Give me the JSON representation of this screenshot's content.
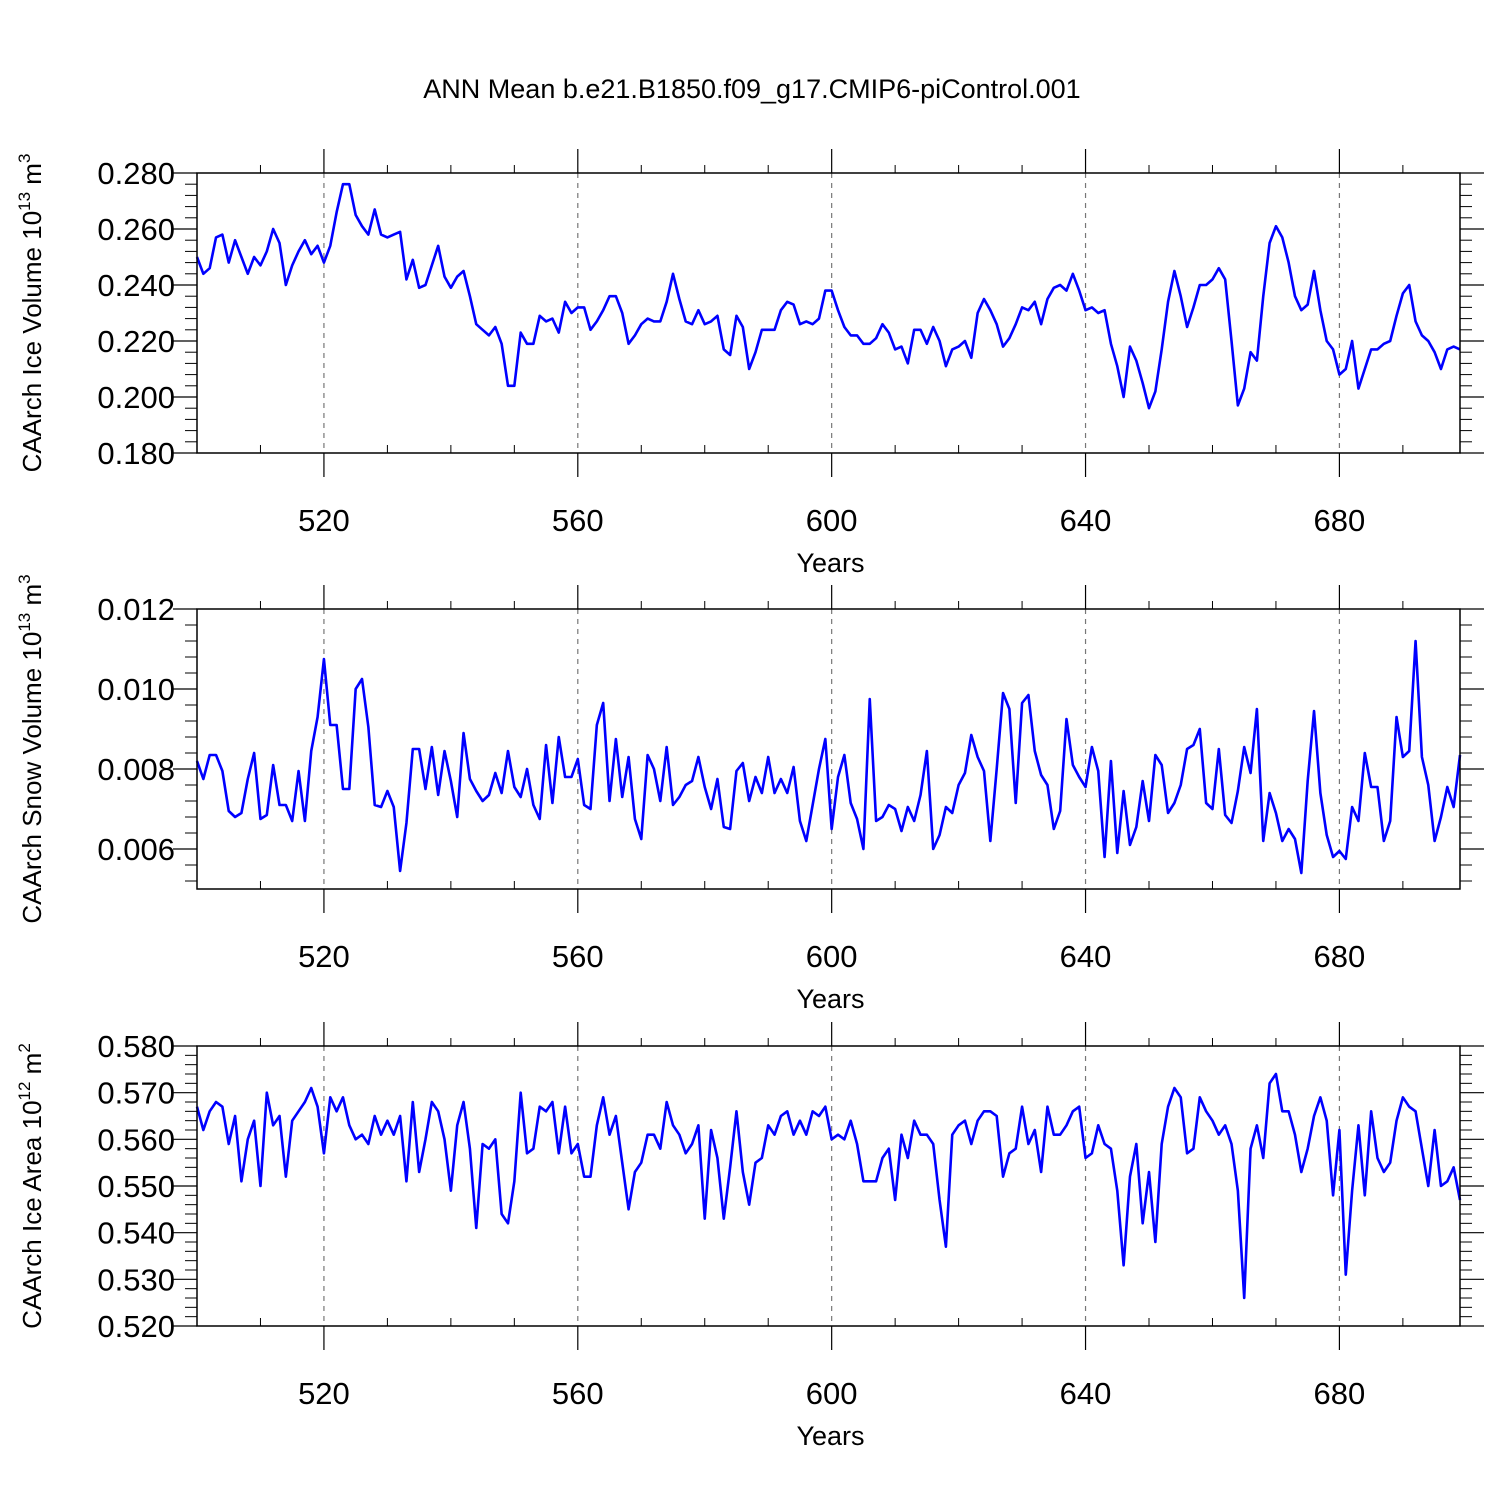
{
  "title": "ANN Mean b.e21.B1850.f09_g17.CMIP6-piControl.001",
  "colors": {
    "line": "#0000ff",
    "axis": "#000000",
    "grid": "#777777",
    "background": "#ffffff"
  },
  "chart_data": [
    {
      "type": "line",
      "ylabel": "CAArch Ice Volume 10",
      "ylabel_exp": "13",
      "ylabel_unit": " m",
      "ylabel_unit_exp": "3",
      "xlabel": "Years",
      "xlim": [
        500,
        699
      ],
      "ylim": [
        0.18,
        0.28
      ],
      "xticks": [
        520,
        560,
        600,
        640,
        680
      ],
      "xtick_labels": [
        "520",
        "560",
        "600",
        "640",
        "680"
      ],
      "yticks": [
        0.18,
        0.2,
        0.22,
        0.24,
        0.26,
        0.28
      ],
      "ytick_labels": [
        "0.180",
        "0.200",
        "0.220",
        "0.240",
        "0.260",
        "0.280"
      ],
      "grid": "vertical dashed at major x ticks",
      "x_start": 500,
      "x_step": 1,
      "values": [
        0.25,
        0.244,
        0.246,
        0.257,
        0.258,
        0.248,
        0.256,
        0.25,
        0.244,
        0.25,
        0.247,
        0.252,
        0.26,
        0.255,
        0.24,
        0.247,
        0.252,
        0.256,
        0.251,
        0.254,
        0.248,
        0.254,
        0.266,
        0.276,
        0.276,
        0.265,
        0.261,
        0.258,
        0.267,
        0.258,
        0.257,
        0.258,
        0.259,
        0.242,
        0.249,
        0.239,
        0.24,
        0.247,
        0.254,
        0.243,
        0.239,
        0.243,
        0.245,
        0.236,
        0.226,
        0.224,
        0.222,
        0.225,
        0.219,
        0.204,
        0.204,
        0.223,
        0.219,
        0.219,
        0.229,
        0.227,
        0.228,
        0.223,
        0.234,
        0.23,
        0.232,
        0.232,
        0.224,
        0.227,
        0.231,
        0.236,
        0.236,
        0.23,
        0.219,
        0.222,
        0.226,
        0.228,
        0.227,
        0.227,
        0.234,
        0.244,
        0.235,
        0.227,
        0.226,
        0.231,
        0.226,
        0.227,
        0.229,
        0.217,
        0.215,
        0.229,
        0.225,
        0.21,
        0.216,
        0.224,
        0.224,
        0.224,
        0.231,
        0.234,
        0.233,
        0.226,
        0.227,
        0.226,
        0.228,
        0.238,
        0.238,
        0.231,
        0.225,
        0.222,
        0.222,
        0.219,
        0.219,
        0.221,
        0.226,
        0.223,
        0.217,
        0.218,
        0.212,
        0.224,
        0.224,
        0.219,
        0.225,
        0.22,
        0.211,
        0.217,
        0.218,
        0.22,
        0.214,
        0.23,
        0.235,
        0.231,
        0.226,
        0.218,
        0.221,
        0.226,
        0.232,
        0.231,
        0.234,
        0.226,
        0.235,
        0.239,
        0.24,
        0.238,
        0.244,
        0.238,
        0.231,
        0.232,
        0.23,
        0.231,
        0.219,
        0.211,
        0.2,
        0.218,
        0.213,
        0.205,
        0.196,
        0.202,
        0.217,
        0.234,
        0.245,
        0.236,
        0.225,
        0.232,
        0.24,
        0.24,
        0.242,
        0.246,
        0.242,
        0.22,
        0.197,
        0.203,
        0.216,
        0.213,
        0.236,
        0.255,
        0.261,
        0.257,
        0.248,
        0.236,
        0.231,
        0.233,
        0.245,
        0.231,
        0.22,
        0.217,
        0.208,
        0.21,
        0.22,
        0.203,
        0.21,
        0.217,
        0.217,
        0.219,
        0.22,
        0.229,
        0.237,
        0.24,
        0.227,
        0.222,
        0.22,
        0.216,
        0.21,
        0.217,
        0.218,
        0.217
      ]
    },
    {
      "type": "line",
      "ylabel": "CAArch Snow Volume 10",
      "ylabel_exp": "13",
      "ylabel_unit": " m",
      "ylabel_unit_exp": "3",
      "xlabel": "Years",
      "xlim": [
        500,
        699
      ],
      "ylim": [
        0.005,
        0.012
      ],
      "xticks": [
        520,
        560,
        600,
        640,
        680
      ],
      "xtick_labels": [
        "520",
        "560",
        "600",
        "640",
        "680"
      ],
      "yticks": [
        0.006,
        0.008,
        0.01,
        0.012
      ],
      "ytick_labels": [
        "0.006",
        "0.008",
        "0.010",
        "0.012"
      ],
      "grid": "vertical dashed at major x ticks",
      "x_start": 500,
      "x_step": 1,
      "values": [
        0.0082,
        0.00775,
        0.00835,
        0.00835,
        0.00795,
        0.00695,
        0.0068,
        0.0069,
        0.00775,
        0.0084,
        0.00675,
        0.00685,
        0.0081,
        0.0071,
        0.0071,
        0.0067,
        0.00795,
        0.0067,
        0.00845,
        0.0093,
        0.01075,
        0.0091,
        0.0091,
        0.0075,
        0.0075,
        0.01,
        0.01025,
        0.00905,
        0.0071,
        0.00705,
        0.00745,
        0.00705,
        0.00545,
        0.00665,
        0.0085,
        0.0085,
        0.0075,
        0.00855,
        0.00735,
        0.00845,
        0.0077,
        0.0068,
        0.0089,
        0.00775,
        0.00745,
        0.0072,
        0.00735,
        0.0079,
        0.0074,
        0.00845,
        0.00755,
        0.0073,
        0.008,
        0.0071,
        0.00675,
        0.0086,
        0.00715,
        0.0088,
        0.0078,
        0.0078,
        0.00825,
        0.0071,
        0.007,
        0.0091,
        0.00965,
        0.0072,
        0.00875,
        0.0073,
        0.0083,
        0.00675,
        0.00625,
        0.00835,
        0.008,
        0.0072,
        0.00855,
        0.0071,
        0.0073,
        0.0076,
        0.0077,
        0.0083,
        0.00755,
        0.007,
        0.00775,
        0.00655,
        0.0065,
        0.00795,
        0.00815,
        0.0072,
        0.0078,
        0.0074,
        0.0083,
        0.0074,
        0.00775,
        0.0074,
        0.00805,
        0.0067,
        0.0062,
        0.0071,
        0.008,
        0.00875,
        0.0065,
        0.0078,
        0.00835,
        0.00715,
        0.00675,
        0.006,
        0.00975,
        0.0067,
        0.0068,
        0.0071,
        0.007,
        0.00645,
        0.00705,
        0.0067,
        0.00735,
        0.00845,
        0.006,
        0.00635,
        0.00705,
        0.0069,
        0.0076,
        0.0079,
        0.00885,
        0.0083,
        0.00795,
        0.0062,
        0.008,
        0.0099,
        0.0095,
        0.00715,
        0.00965,
        0.00985,
        0.00845,
        0.00785,
        0.0076,
        0.0065,
        0.00695,
        0.00925,
        0.0081,
        0.0078,
        0.00755,
        0.00855,
        0.00795,
        0.0058,
        0.0082,
        0.0059,
        0.00745,
        0.0061,
        0.00655,
        0.0077,
        0.0067,
        0.00835,
        0.0081,
        0.0069,
        0.00715,
        0.0076,
        0.0085,
        0.0086,
        0.009,
        0.00715,
        0.007,
        0.0085,
        0.00685,
        0.00665,
        0.00745,
        0.00855,
        0.0079,
        0.0095,
        0.0062,
        0.0074,
        0.0069,
        0.0062,
        0.0065,
        0.00625,
        0.0054,
        0.0077,
        0.00945,
        0.0074,
        0.00635,
        0.0058,
        0.00595,
        0.00575,
        0.00705,
        0.0067,
        0.0084,
        0.00755,
        0.00755,
        0.0062,
        0.0067,
        0.0093,
        0.0083,
        0.00845,
        0.0112,
        0.0083,
        0.0076,
        0.0062,
        0.0068,
        0.00755,
        0.00705,
        0.00835
      ]
    },
    {
      "type": "line",
      "ylabel": "CAArch Ice Area 10",
      "ylabel_exp": "12",
      "ylabel_unit": " m",
      "ylabel_unit_exp": "2",
      "xlabel": "Years",
      "xlim": [
        500,
        699
      ],
      "ylim": [
        0.52,
        0.58
      ],
      "xticks": [
        520,
        560,
        600,
        640,
        680
      ],
      "xtick_labels": [
        "520",
        "560",
        "600",
        "640",
        "680"
      ],
      "yticks": [
        0.52,
        0.53,
        0.54,
        0.55,
        0.56,
        0.57,
        0.58
      ],
      "ytick_labels": [
        "0.520",
        "0.530",
        "0.540",
        "0.550",
        "0.560",
        "0.570",
        "0.580"
      ],
      "grid": "vertical dashed at major x ticks",
      "x_start": 500,
      "x_step": 1,
      "values": [
        0.567,
        0.562,
        0.566,
        0.568,
        0.567,
        0.559,
        0.565,
        0.551,
        0.56,
        0.564,
        0.55,
        0.57,
        0.563,
        0.565,
        0.552,
        0.564,
        0.566,
        0.568,
        0.571,
        0.567,
        0.557,
        0.569,
        0.566,
        0.569,
        0.563,
        0.56,
        0.561,
        0.559,
        0.565,
        0.561,
        0.564,
        0.561,
        0.565,
        0.551,
        0.568,
        0.553,
        0.56,
        0.568,
        0.566,
        0.56,
        0.549,
        0.563,
        0.568,
        0.558,
        0.541,
        0.559,
        0.558,
        0.56,
        0.544,
        0.542,
        0.551,
        0.57,
        0.557,
        0.558,
        0.567,
        0.566,
        0.568,
        0.557,
        0.567,
        0.557,
        0.559,
        0.552,
        0.552,
        0.563,
        0.569,
        0.561,
        0.565,
        0.555,
        0.545,
        0.553,
        0.555,
        0.561,
        0.561,
        0.558,
        0.568,
        0.563,
        0.561,
        0.557,
        0.559,
        0.563,
        0.543,
        0.562,
        0.556,
        0.543,
        0.554,
        0.566,
        0.553,
        0.546,
        0.555,
        0.556,
        0.563,
        0.561,
        0.565,
        0.566,
        0.561,
        0.564,
        0.561,
        0.566,
        0.565,
        0.567,
        0.56,
        0.561,
        0.56,
        0.564,
        0.559,
        0.551,
        0.551,
        0.551,
        0.556,
        0.558,
        0.547,
        0.561,
        0.556,
        0.564,
        0.561,
        0.561,
        0.559,
        0.547,
        0.537,
        0.561,
        0.563,
        0.564,
        0.559,
        0.564,
        0.566,
        0.566,
        0.565,
        0.552,
        0.557,
        0.558,
        0.567,
        0.559,
        0.562,
        0.553,
        0.567,
        0.561,
        0.561,
        0.563,
        0.566,
        0.567,
        0.556,
        0.557,
        0.563,
        0.559,
        0.558,
        0.549,
        0.533,
        0.552,
        0.559,
        0.542,
        0.553,
        0.538,
        0.559,
        0.567,
        0.571,
        0.569,
        0.557,
        0.558,
        0.569,
        0.566,
        0.564,
        0.561,
        0.563,
        0.559,
        0.549,
        0.526,
        0.558,
        0.563,
        0.556,
        0.572,
        0.574,
        0.566,
        0.566,
        0.561,
        0.553,
        0.558,
        0.565,
        0.569,
        0.564,
        0.548,
        0.562,
        0.531,
        0.549,
        0.563,
        0.548,
        0.566,
        0.556,
        0.553,
        0.555,
        0.564,
        0.569,
        0.567,
        0.566,
        0.558,
        0.55,
        0.562,
        0.55,
        0.551,
        0.554,
        0.547
      ]
    }
  ]
}
